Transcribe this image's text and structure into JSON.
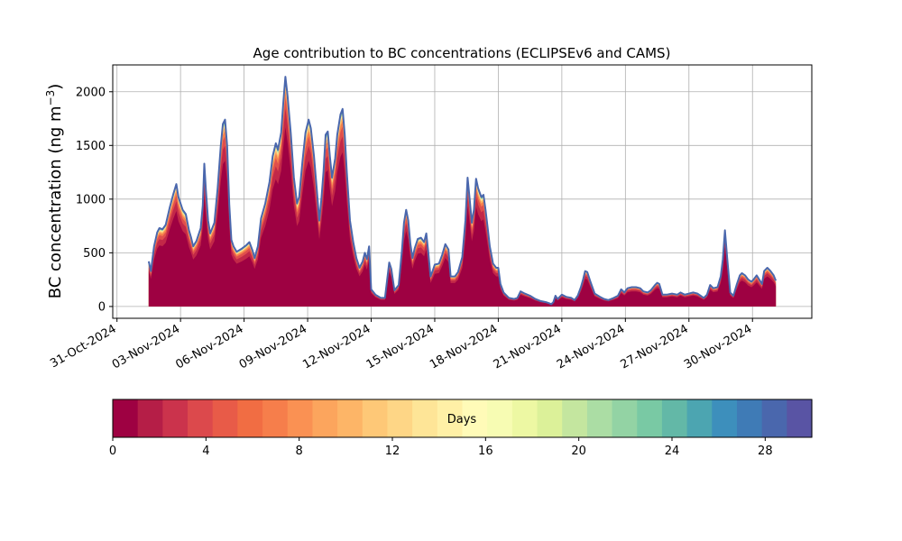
{
  "chart_data": {
    "type": "area",
    "title": "Age contribution to BC concentrations (ECLIPSEv6 and CAMS)",
    "ylabel": "BC concentration (ng m",
    "ylabel_exp": "−3",
    "ylabel_close": ")",
    "xlabel": "",
    "ylim": [
      -110,
      2250
    ],
    "xlim": [
      -0.2,
      32.8
    ],
    "y_ticks": [
      0,
      500,
      1000,
      1500,
      2000
    ],
    "x_ticks": [
      {
        "day": 0,
        "label": "31-Oct-2024"
      },
      {
        "day": 3,
        "label": "03-Nov-2024"
      },
      {
        "day": 6,
        "label": "06-Nov-2024"
      },
      {
        "day": 9,
        "label": "09-Nov-2024"
      },
      {
        "day": 12,
        "label": "12-Nov-2024"
      },
      {
        "day": 15,
        "label": "15-Nov-2024"
      },
      {
        "day": 18,
        "label": "18-Nov-2024"
      },
      {
        "day": 21,
        "label": "21-Nov-2024"
      },
      {
        "day": 24,
        "label": "24-Nov-2024"
      },
      {
        "day": 27,
        "label": "27-Nov-2024"
      },
      {
        "day": 30,
        "label": "30-Nov-2024"
      }
    ],
    "grid": true,
    "total_series": [
      [
        1.5,
        420
      ],
      [
        1.6,
        330
      ],
      [
        1.75,
        560
      ],
      [
        1.9,
        690
      ],
      [
        2.0,
        730
      ],
      [
        2.15,
        720
      ],
      [
        2.3,
        760
      ],
      [
        2.5,
        930
      ],
      [
        2.65,
        1040
      ],
      [
        2.8,
        1140
      ],
      [
        2.9,
        1020
      ],
      [
        3.1,
        900
      ],
      [
        3.25,
        860
      ],
      [
        3.4,
        710
      ],
      [
        3.5,
        640
      ],
      [
        3.6,
        560
      ],
      [
        3.75,
        610
      ],
      [
        3.95,
        730
      ],
      [
        4.05,
        940
      ],
      [
        4.12,
        1330
      ],
      [
        4.2,
        1080
      ],
      [
        4.3,
        800
      ],
      [
        4.4,
        680
      ],
      [
        4.6,
        780
      ],
      [
        4.75,
        1100
      ],
      [
        4.9,
        1500
      ],
      [
        5.0,
        1700
      ],
      [
        5.1,
        1740
      ],
      [
        5.2,
        1500
      ],
      [
        5.3,
        950
      ],
      [
        5.4,
        620
      ],
      [
        5.5,
        560
      ],
      [
        5.65,
        510
      ],
      [
        5.9,
        540
      ],
      [
        6.1,
        570
      ],
      [
        6.25,
        600
      ],
      [
        6.4,
        520
      ],
      [
        6.5,
        450
      ],
      [
        6.65,
        560
      ],
      [
        6.8,
        820
      ],
      [
        7.0,
        960
      ],
      [
        7.2,
        1160
      ],
      [
        7.35,
        1400
      ],
      [
        7.5,
        1520
      ],
      [
        7.6,
        1460
      ],
      [
        7.75,
        1620
      ],
      [
        7.85,
        1900
      ],
      [
        7.95,
        2140
      ],
      [
        8.05,
        1960
      ],
      [
        8.2,
        1620
      ],
      [
        8.35,
        1200
      ],
      [
        8.5,
        960
      ],
      [
        8.6,
        1020
      ],
      [
        8.75,
        1340
      ],
      [
        8.9,
        1620
      ],
      [
        9.05,
        1740
      ],
      [
        9.15,
        1660
      ],
      [
        9.3,
        1400
      ],
      [
        9.45,
        1050
      ],
      [
        9.55,
        800
      ],
      [
        9.65,
        1000
      ],
      [
        9.75,
        1260
      ],
      [
        9.85,
        1600
      ],
      [
        9.95,
        1630
      ],
      [
        10.05,
        1400
      ],
      [
        10.15,
        1200
      ],
      [
        10.3,
        1380
      ],
      [
        10.4,
        1600
      ],
      [
        10.55,
        1790
      ],
      [
        10.65,
        1840
      ],
      [
        10.75,
        1600
      ],
      [
        10.85,
        1250
      ],
      [
        11.0,
        800
      ],
      [
        11.15,
        600
      ],
      [
        11.3,
        450
      ],
      [
        11.45,
        360
      ],
      [
        11.6,
        420
      ],
      [
        11.7,
        500
      ],
      [
        11.8,
        440
      ],
      [
        11.9,
        560
      ],
      [
        12.0,
        160
      ],
      [
        12.2,
        110
      ],
      [
        12.45,
        80
      ],
      [
        12.65,
        80
      ],
      [
        12.75,
        240
      ],
      [
        12.85,
        410
      ],
      [
        12.95,
        350
      ],
      [
        13.1,
        150
      ],
      [
        13.3,
        200
      ],
      [
        13.45,
        520
      ],
      [
        13.55,
        780
      ],
      [
        13.65,
        900
      ],
      [
        13.75,
        800
      ],
      [
        13.85,
        580
      ],
      [
        13.95,
        450
      ],
      [
        14.05,
        540
      ],
      [
        14.2,
        630
      ],
      [
        14.35,
        640
      ],
      [
        14.5,
        600
      ],
      [
        14.6,
        680
      ],
      [
        14.7,
        500
      ],
      [
        14.8,
        280
      ],
      [
        14.9,
        330
      ],
      [
        15.0,
        390
      ],
      [
        15.2,
        400
      ],
      [
        15.35,
        480
      ],
      [
        15.5,
        580
      ],
      [
        15.65,
        530
      ],
      [
        15.75,
        280
      ],
      [
        15.95,
        280
      ],
      [
        16.1,
        320
      ],
      [
        16.3,
        460
      ],
      [
        16.45,
        800
      ],
      [
        16.55,
        1200
      ],
      [
        16.65,
        1000
      ],
      [
        16.75,
        780
      ],
      [
        16.85,
        900
      ],
      [
        16.95,
        1190
      ],
      [
        17.05,
        1100
      ],
      [
        17.2,
        1020
      ],
      [
        17.3,
        1040
      ],
      [
        17.4,
        900
      ],
      [
        17.5,
        730
      ],
      [
        17.6,
        560
      ],
      [
        17.75,
        400
      ],
      [
        17.9,
        360
      ],
      [
        18.0,
        360
      ],
      [
        18.1,
        210
      ],
      [
        18.25,
        130
      ],
      [
        18.5,
        80
      ],
      [
        18.75,
        70
      ],
      [
        18.9,
        80
      ],
      [
        19.05,
        140
      ],
      [
        19.25,
        120
      ],
      [
        19.5,
        100
      ],
      [
        19.75,
        70
      ],
      [
        20.0,
        50
      ],
      [
        20.25,
        40
      ],
      [
        20.4,
        30
      ],
      [
        20.5,
        20
      ],
      [
        20.6,
        40
      ],
      [
        20.7,
        100
      ],
      [
        20.8,
        70
      ],
      [
        21.0,
        110
      ],
      [
        21.2,
        90
      ],
      [
        21.45,
        80
      ],
      [
        21.6,
        60
      ],
      [
        21.75,
        100
      ],
      [
        21.9,
        180
      ],
      [
        22.0,
        250
      ],
      [
        22.1,
        330
      ],
      [
        22.2,
        320
      ],
      [
        22.35,
        230
      ],
      [
        22.55,
        120
      ],
      [
        22.8,
        90
      ],
      [
        23.0,
        70
      ],
      [
        23.2,
        60
      ],
      [
        23.45,
        80
      ],
      [
        23.65,
        100
      ],
      [
        23.8,
        160
      ],
      [
        23.95,
        130
      ],
      [
        24.1,
        170
      ],
      [
        24.3,
        180
      ],
      [
        24.5,
        180
      ],
      [
        24.7,
        170
      ],
      [
        24.85,
        140
      ],
      [
        25.05,
        130
      ],
      [
        25.2,
        150
      ],
      [
        25.4,
        200
      ],
      [
        25.5,
        220
      ],
      [
        25.6,
        210
      ],
      [
        25.75,
        110
      ],
      [
        25.95,
        110
      ],
      [
        26.2,
        120
      ],
      [
        26.45,
        110
      ],
      [
        26.6,
        130
      ],
      [
        26.8,
        110
      ],
      [
        27.0,
        120
      ],
      [
        27.2,
        130
      ],
      [
        27.4,
        120
      ],
      [
        27.55,
        100
      ],
      [
        27.7,
        80
      ],
      [
        27.85,
        110
      ],
      [
        28.0,
        200
      ],
      [
        28.15,
        170
      ],
      [
        28.35,
        180
      ],
      [
        28.5,
        280
      ],
      [
        28.6,
        440
      ],
      [
        28.7,
        710
      ],
      [
        28.8,
        460
      ],
      [
        28.95,
        130
      ],
      [
        29.1,
        100
      ],
      [
        29.25,
        200
      ],
      [
        29.4,
        290
      ],
      [
        29.5,
        310
      ],
      [
        29.65,
        290
      ],
      [
        29.8,
        250
      ],
      [
        29.95,
        230
      ],
      [
        30.05,
        250
      ],
      [
        30.2,
        290
      ],
      [
        30.35,
        240
      ],
      [
        30.45,
        210
      ],
      [
        30.55,
        330
      ],
      [
        30.7,
        360
      ],
      [
        30.85,
        330
      ],
      [
        31.0,
        290
      ],
      [
        31.1,
        240
      ]
    ],
    "colorbar": {
      "label": "Days",
      "range": [
        0,
        30
      ],
      "ticks": [
        0,
        4,
        8,
        12,
        16,
        20,
        24,
        28
      ],
      "colormap": "Spectral",
      "colors": [
        "#9e0142",
        "#b51e47",
        "#cb334c",
        "#dc494c",
        "#e85b48",
        "#f16d43",
        "#f67e4b",
        "#fa9153",
        "#fca55d",
        "#fdb567",
        "#fec877",
        "#fed686",
        "#fee597",
        "#fff0a6",
        "#fffbb8",
        "#f7fcb3",
        "#edf8a3",
        "#dcf199",
        "#c4e69f",
        "#abdda4",
        "#93d3a4",
        "#79c9a4",
        "#63b8a7",
        "#4ca5b1",
        "#3d8fbc",
        "#3f7bb6",
        "#4a67ad",
        "#5954a4"
      ]
    },
    "band_fractions": [
      0.78,
      0.86,
      0.91,
      0.94,
      0.96,
      0.975,
      0.985,
      0.993,
      1.0
    ],
    "band_colors": [
      "#9e0142",
      "#c22848",
      "#e04f4c",
      "#f6804d",
      "#fdb567",
      "#fee597",
      "#abdda4",
      "#4ca5b1",
      "#5954a4"
    ],
    "total_line_color": "#4a67ad"
  }
}
